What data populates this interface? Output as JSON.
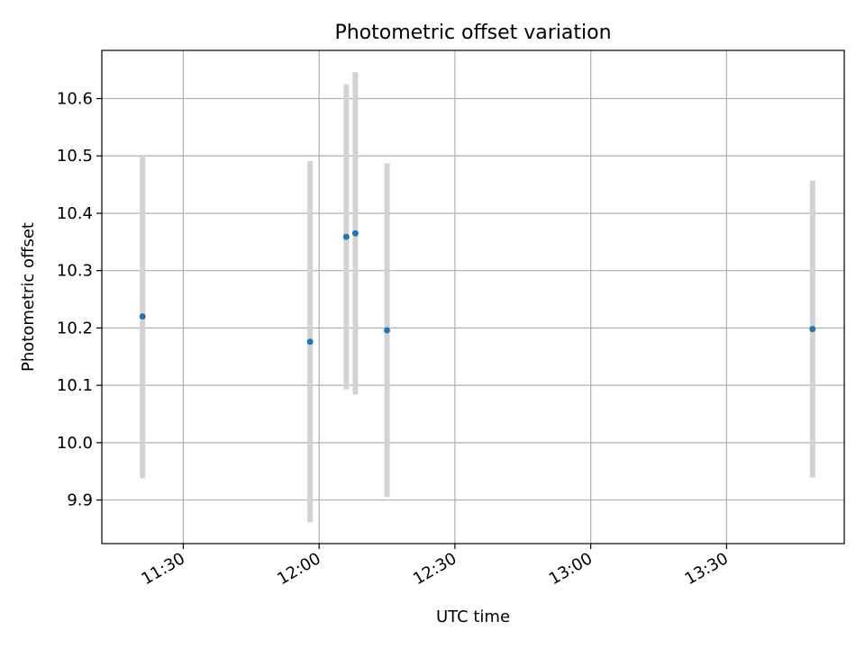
{
  "chart_data": {
    "type": "scatter",
    "title": "Photometric offset variation",
    "xlabel": "UTC time",
    "ylabel": "Photometric offset",
    "xlim": [
      "11:12",
      "13:56"
    ],
    "ylim": [
      9.824,
      10.684
    ],
    "grid": true,
    "colors": {
      "point": "#1f77b4",
      "errorbar": "#d3d3d3",
      "grid": "#b0b0b0",
      "axes": "#000000"
    },
    "x_ticks": [
      "11:30",
      "12:00",
      "12:30",
      "13:00",
      "13:30"
    ],
    "y_ticks": [
      "9.9",
      "10.0",
      "10.1",
      "10.2",
      "10.3",
      "10.4",
      "10.5",
      "10.6"
    ],
    "points": [
      {
        "x": "11:21",
        "y": 10.22,
        "err": 0.282
      },
      {
        "x": "11:58",
        "y": 10.176,
        "err": 0.315
      },
      {
        "x": "12:06",
        "y": 10.359,
        "err": 0.266
      },
      {
        "x": "12:08",
        "y": 10.365,
        "err": 0.281
      },
      {
        "x": "12:15",
        "y": 10.196,
        "err": 0.291
      },
      {
        "x": "13:49",
        "y": 10.198,
        "err": 0.259
      }
    ]
  }
}
